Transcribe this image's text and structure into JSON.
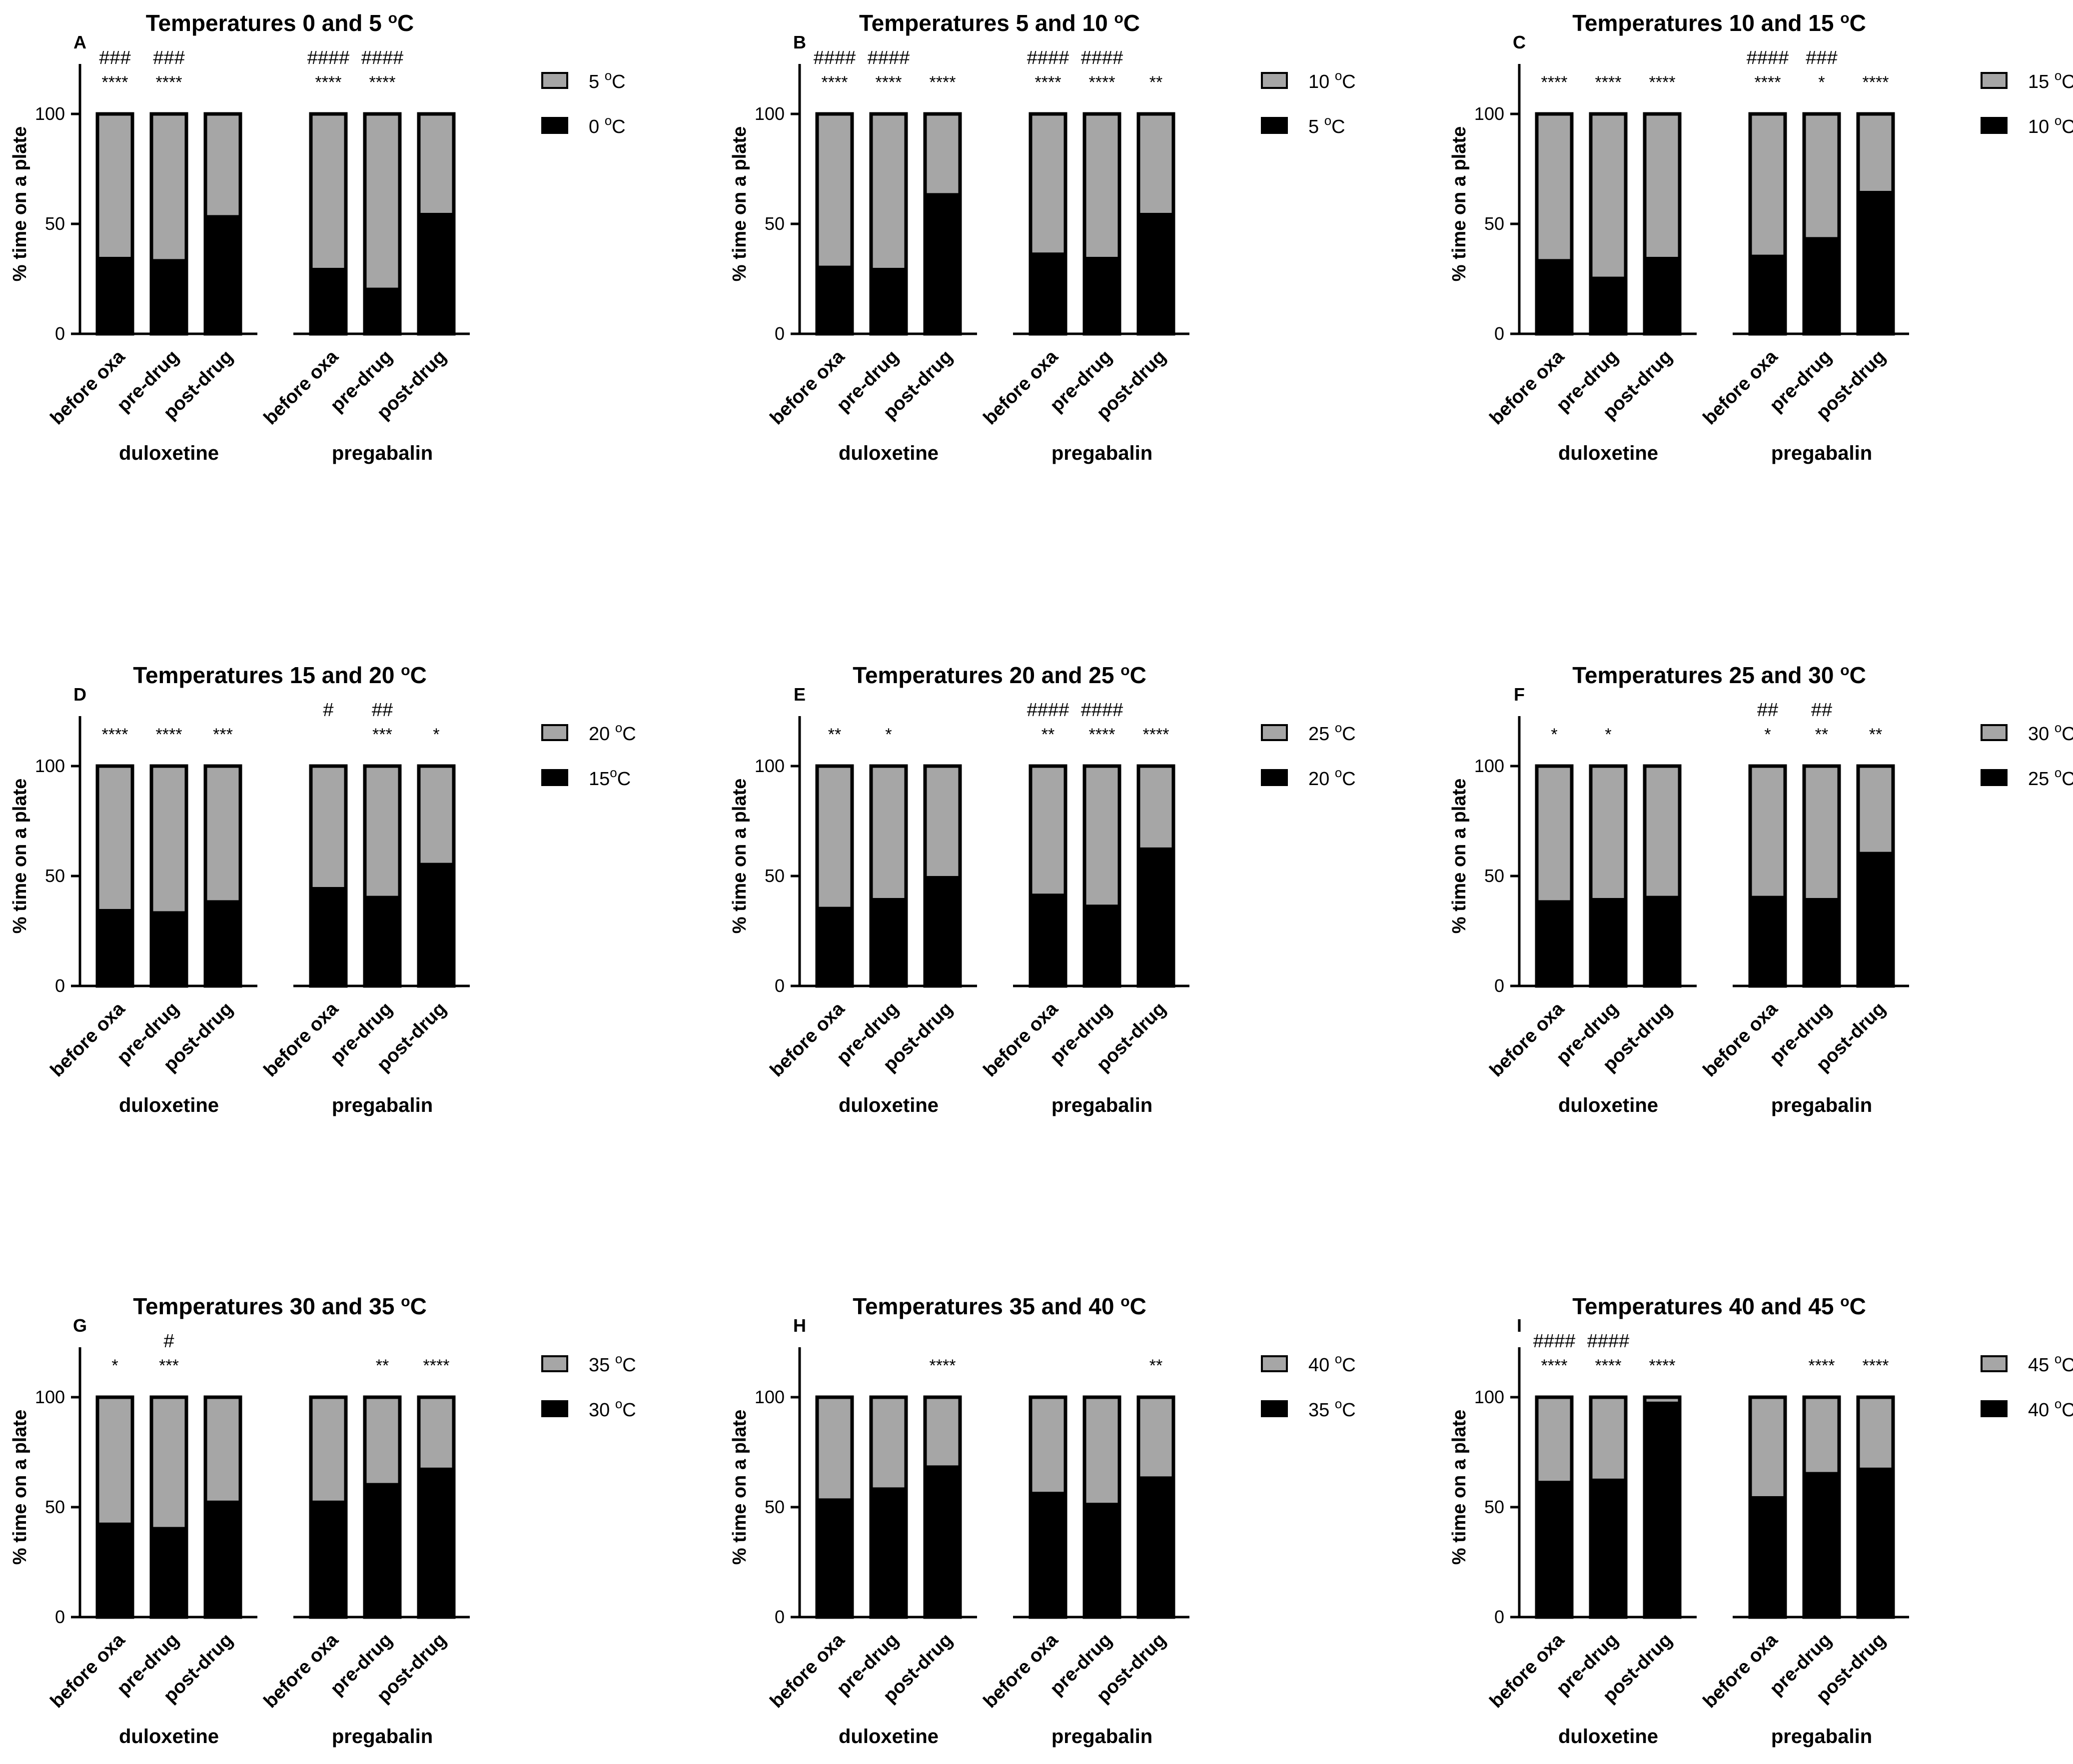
{
  "chart_data": [
    {
      "panel": "A",
      "type": "bar",
      "stacked": true,
      "title": "Temperatures 0 and 5 °C",
      "title_parts": [
        "Temperatures 0 and 5 ",
        "o",
        "C"
      ],
      "ylabel": "% time on a plate",
      "ylim": [
        0,
        100
      ],
      "yticks": [
        0,
        50,
        100
      ],
      "groups": [
        "duloxetine",
        "pregabalin"
      ],
      "categories": [
        "before oxa",
        "pre-drug",
        "post-drug"
      ],
      "series": [
        {
          "name": "0 °C",
          "name_parts": [
            "0 ",
            "o",
            "C"
          ],
          "color": "#000000",
          "values": [
            [
              35,
              34,
              54
            ],
            [
              30,
              21,
              55
            ]
          ]
        },
        {
          "name": "5 °C",
          "name_parts": [
            "5 ",
            "o",
            "C"
          ],
          "color": "#a6a6a6",
          "values": [
            [
              65,
              66,
              46
            ],
            [
              70,
              79,
              45
            ]
          ]
        }
      ],
      "significance_stars": [
        [
          "****",
          "****",
          ""
        ],
        [
          "****",
          "****",
          ""
        ]
      ],
      "significance_hashes": [
        [
          "###",
          "###",
          ""
        ],
        [
          "####",
          "####",
          ""
        ]
      ]
    },
    {
      "panel": "B",
      "type": "bar",
      "stacked": true,
      "title": "Temperatures 5 and 10 °C",
      "title_parts": [
        "Temperatures 5 and 10 ",
        "o",
        "C"
      ],
      "ylabel": "% time on a plate",
      "ylim": [
        0,
        100
      ],
      "yticks": [
        0,
        50,
        100
      ],
      "groups": [
        "duloxetine",
        "pregabalin"
      ],
      "categories": [
        "before oxa",
        "pre-drug",
        "post-drug"
      ],
      "series": [
        {
          "name": "5 °C",
          "name_parts": [
            "5 ",
            "o",
            "C"
          ],
          "color": "#000000",
          "values": [
            [
              31,
              30,
              64
            ],
            [
              37,
              35,
              55
            ]
          ]
        },
        {
          "name": "10 °C",
          "name_parts": [
            "10 ",
            "o",
            "C"
          ],
          "color": "#a6a6a6",
          "values": [
            [
              69,
              70,
              36
            ],
            [
              63,
              65,
              45
            ]
          ]
        }
      ],
      "significance_stars": [
        [
          "****",
          "****",
          "****"
        ],
        [
          "****",
          "****",
          "**"
        ]
      ],
      "significance_hashes": [
        [
          "####",
          "####",
          ""
        ],
        [
          "####",
          "####",
          ""
        ]
      ]
    },
    {
      "panel": "C",
      "type": "bar",
      "stacked": true,
      "title": "Temperatures 10 and 15 °C",
      "title_parts": [
        "Temperatures 10 and 15 ",
        "o",
        "C"
      ],
      "ylabel": "% time on a plate",
      "ylim": [
        0,
        100
      ],
      "yticks": [
        0,
        50,
        100
      ],
      "groups": [
        "duloxetine",
        "pregabalin"
      ],
      "categories": [
        "before oxa",
        "pre-drug",
        "post-drug"
      ],
      "series": [
        {
          "name": "10 °C",
          "name_parts": [
            "10 ",
            "o",
            "C"
          ],
          "color": "#000000",
          "values": [
            [
              34,
              26,
              35
            ],
            [
              36,
              44,
              65
            ]
          ]
        },
        {
          "name": "15 °C",
          "name_parts": [
            "15 ",
            "o",
            "C"
          ],
          "color": "#a6a6a6",
          "values": [
            [
              66,
              74,
              65
            ],
            [
              64,
              56,
              35
            ]
          ]
        }
      ],
      "significance_stars": [
        [
          "****",
          "****",
          "****"
        ],
        [
          "****",
          "*",
          "****"
        ]
      ],
      "significance_hashes": [
        [
          "",
          "",
          ""
        ],
        [
          "####",
          "###",
          ""
        ]
      ]
    },
    {
      "panel": "D",
      "type": "bar",
      "stacked": true,
      "title": "Temperatures 15 and 20 °C",
      "title_parts": [
        "Temperatures 15 and 20 ",
        "o",
        "C"
      ],
      "ylabel": "% time on a plate",
      "ylim": [
        0,
        100
      ],
      "yticks": [
        0,
        50,
        100
      ],
      "groups": [
        "duloxetine",
        "pregabalin"
      ],
      "categories": [
        "before oxa",
        "pre-drug",
        "post-drug"
      ],
      "series": [
        {
          "name": "15°C",
          "name_parts": [
            "15",
            "o",
            "C"
          ],
          "color": "#000000",
          "values": [
            [
              35,
              34,
              39
            ],
            [
              45,
              41,
              56
            ]
          ]
        },
        {
          "name": "20 °C",
          "name_parts": [
            "20 ",
            "o",
            "C"
          ],
          "color": "#a6a6a6",
          "values": [
            [
              65,
              66,
              61
            ],
            [
              55,
              59,
              44
            ]
          ]
        }
      ],
      "significance_stars": [
        [
          "****",
          "****",
          "***"
        ],
        [
          "",
          "***",
          "*"
        ]
      ],
      "significance_hashes": [
        [
          "",
          "",
          ""
        ],
        [
          "#",
          "##",
          ""
        ]
      ]
    },
    {
      "panel": "E",
      "type": "bar",
      "stacked": true,
      "title": "Temperatures 20 and 25 °C",
      "title_parts": [
        "Temperatures 20 and 25 ",
        "o",
        "C"
      ],
      "ylabel": "% time on a plate",
      "ylim": [
        0,
        100
      ],
      "yticks": [
        0,
        50,
        100
      ],
      "groups": [
        "duloxetine",
        "pregabalin"
      ],
      "categories": [
        "before oxa",
        "pre-drug",
        "post-drug"
      ],
      "series": [
        {
          "name": "20 °C",
          "name_parts": [
            "20 ",
            "o",
            "C"
          ],
          "color": "#000000",
          "values": [
            [
              36,
              40,
              50
            ],
            [
              42,
              37,
              63
            ]
          ]
        },
        {
          "name": "25 °C",
          "name_parts": [
            "25 ",
            "o",
            "C"
          ],
          "color": "#a6a6a6",
          "values": [
            [
              64,
              60,
              50
            ],
            [
              58,
              63,
              37
            ]
          ]
        }
      ],
      "significance_stars": [
        [
          "**",
          "*",
          ""
        ],
        [
          "**",
          "****",
          "****"
        ]
      ],
      "significance_hashes": [
        [
          "",
          "",
          ""
        ],
        [
          "####",
          "####",
          ""
        ]
      ]
    },
    {
      "panel": "F",
      "type": "bar",
      "stacked": true,
      "title": "Temperatures 25 and 30 °C",
      "title_parts": [
        "Temperatures 25 and 30 ",
        "o",
        "C"
      ],
      "ylabel": "% time on a plate",
      "ylim": [
        0,
        100
      ],
      "yticks": [
        0,
        50,
        100
      ],
      "groups": [
        "duloxetine",
        "pregabalin"
      ],
      "categories": [
        "before oxa",
        "pre-drug",
        "post-drug"
      ],
      "series": [
        {
          "name": "25 °C",
          "name_parts": [
            "25 ",
            "o",
            "C"
          ],
          "color": "#000000",
          "values": [
            [
              39,
              40,
              41
            ],
            [
              41,
              40,
              61
            ]
          ]
        },
        {
          "name": "30 °C",
          "name_parts": [
            "30 ",
            "o",
            "C"
          ],
          "color": "#a6a6a6",
          "values": [
            [
              61,
              60,
              59
            ],
            [
              59,
              60,
              39
            ]
          ]
        }
      ],
      "significance_stars": [
        [
          "*",
          "*",
          ""
        ],
        [
          "*",
          "**",
          "**"
        ]
      ],
      "significance_hashes": [
        [
          "",
          "",
          ""
        ],
        [
          "##",
          "##",
          ""
        ]
      ]
    },
    {
      "panel": "G",
      "type": "bar",
      "stacked": true,
      "title": "Temperatures 30 and 35 °C",
      "title_parts": [
        "Temperatures 30 and 35 ",
        "o",
        "C"
      ],
      "ylabel": "% time on a plate",
      "ylim": [
        0,
        100
      ],
      "yticks": [
        0,
        50,
        100
      ],
      "groups": [
        "duloxetine",
        "pregabalin"
      ],
      "categories": [
        "before oxa",
        "pre-drug",
        "post-drug"
      ],
      "series": [
        {
          "name": "30 °C",
          "name_parts": [
            "30 ",
            "o",
            "C"
          ],
          "color": "#000000",
          "values": [
            [
              43,
              41,
              53
            ],
            [
              53,
              61,
              68
            ]
          ]
        },
        {
          "name": "35 °C",
          "name_parts": [
            "35 ",
            "o",
            "C"
          ],
          "color": "#a6a6a6",
          "values": [
            [
              57,
              59,
              47
            ],
            [
              47,
              39,
              32
            ]
          ]
        }
      ],
      "significance_stars": [
        [
          "*",
          "***",
          ""
        ],
        [
          "",
          "**",
          "****"
        ]
      ],
      "significance_hashes": [
        [
          "",
          "#",
          ""
        ],
        [
          "",
          "",
          ""
        ]
      ]
    },
    {
      "panel": "H",
      "type": "bar",
      "stacked": true,
      "title": "Temperatures 35 and 40 °C",
      "title_parts": [
        "Temperatures 35 and 40 ",
        "o",
        "C"
      ],
      "ylabel": "% time on a plate",
      "ylim": [
        0,
        100
      ],
      "yticks": [
        0,
        50,
        100
      ],
      "groups": [
        "duloxetine",
        "pregabalin"
      ],
      "categories": [
        "before oxa",
        "pre-drug",
        "post-drug"
      ],
      "series": [
        {
          "name": "35 °C",
          "name_parts": [
            "35 ",
            "o",
            "C"
          ],
          "color": "#000000",
          "values": [
            [
              54,
              59,
              69
            ],
            [
              57,
              52,
              64
            ]
          ]
        },
        {
          "name": "40 °C",
          "name_parts": [
            "40 ",
            "o",
            "C"
          ],
          "color": "#a6a6a6",
          "values": [
            [
              46,
              41,
              31
            ],
            [
              43,
              48,
              36
            ]
          ]
        }
      ],
      "significance_stars": [
        [
          "",
          "",
          "****"
        ],
        [
          "",
          "",
          "**"
        ]
      ],
      "significance_hashes": [
        [
          "",
          "",
          ""
        ],
        [
          "",
          "",
          ""
        ]
      ]
    },
    {
      "panel": "I",
      "type": "bar",
      "stacked": true,
      "title": "Temperatures 40 and 45 °C",
      "title_parts": [
        "Temperatures 40 and 45 ",
        "o",
        "C"
      ],
      "ylabel": "% time on a plate",
      "ylim": [
        0,
        100
      ],
      "yticks": [
        0,
        50,
        100
      ],
      "groups": [
        "duloxetine",
        "pregabalin"
      ],
      "categories": [
        "before oxa",
        "pre-drug",
        "post-drug"
      ],
      "series": [
        {
          "name": "40 °C",
          "name_parts": [
            "40 ",
            "o",
            "C"
          ],
          "color": "#000000",
          "values": [
            [
              62,
              63,
              98
            ],
            [
              55,
              66,
              68
            ]
          ]
        },
        {
          "name": "45 °C",
          "name_parts": [
            "45 ",
            "o",
            "C"
          ],
          "color": "#a6a6a6",
          "values": [
            [
              38,
              37,
              2
            ],
            [
              45,
              34,
              32
            ]
          ]
        }
      ],
      "significance_stars": [
        [
          "****",
          "****",
          "****"
        ],
        [
          "",
          "****",
          "****"
        ]
      ],
      "significance_hashes": [
        [
          "####",
          "####",
          ""
        ],
        [
          "",
          "",
          ""
        ]
      ]
    }
  ]
}
